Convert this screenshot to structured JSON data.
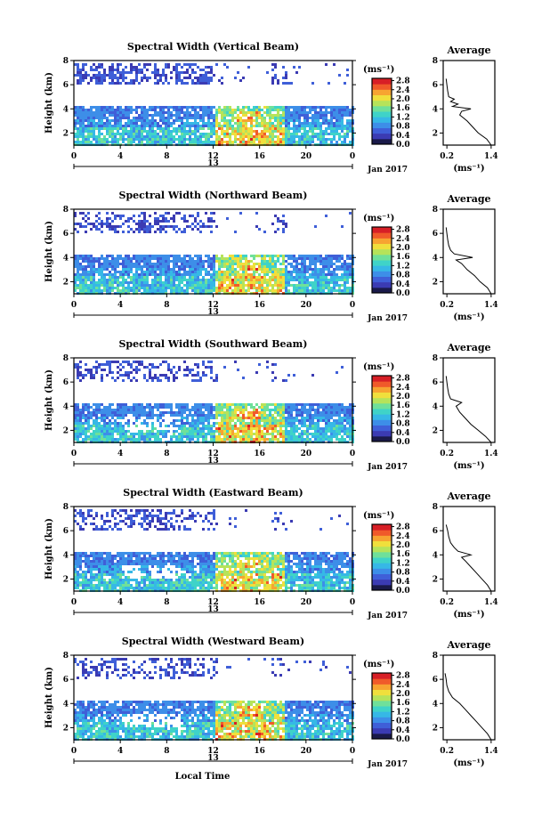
{
  "chart_data": [
    {
      "type": "heatmap",
      "title": "Spectral Width (Vertical Beam)",
      "ylabel": "Height (km)",
      "xticks": [
        "0",
        "4",
        "8",
        "12",
        "16",
        "20",
        "0"
      ],
      "xrange": [
        0,
        24
      ],
      "yticks": [
        "2",
        "4",
        "6",
        "8"
      ],
      "yrange": [
        1,
        8
      ],
      "date_marker": "13",
      "date_label": "Jan 2017",
      "colorbar": {
        "unit": "(ms⁻¹)",
        "ticks": [
          "0.0",
          "0.4",
          "0.8",
          "1.2",
          "1.6",
          "2.0",
          "2.4",
          "2.8"
        ],
        "range": [
          0,
          2.9
        ]
      },
      "profile": {
        "title": "Average",
        "xlabel": "(ms⁻¹)",
        "xticks": [
          "0.2",
          "1.4"
        ],
        "xrange": [
          0.1,
          1.5
        ],
        "yticks": [
          "2",
          "4",
          "6",
          "8"
        ],
        "yrange": [
          1,
          8
        ],
        "heights": [
          1.0,
          1.5,
          2.0,
          2.5,
          3.0,
          3.5,
          3.8,
          4.0,
          4.2,
          4.4,
          4.6,
          4.8,
          5.0,
          5.5,
          6.0,
          6.5
        ],
        "values": [
          1.4,
          1.28,
          1.05,
          0.9,
          0.75,
          0.55,
          0.6,
          0.85,
          0.35,
          0.5,
          0.3,
          0.4,
          0.25,
          0.22,
          0.2,
          0.18
        ]
      }
    },
    {
      "type": "heatmap",
      "title": "Spectral Width (Northward Beam)",
      "ylabel": "Height (km)",
      "xticks": [
        "0",
        "4",
        "8",
        "12",
        "16",
        "20",
        "0"
      ],
      "xrange": [
        0,
        24
      ],
      "yticks": [
        "2",
        "4",
        "6",
        "8"
      ],
      "yrange": [
        1,
        8
      ],
      "date_marker": "13",
      "date_label": "Jan 2017",
      "colorbar": {
        "unit": "(ms⁻¹)",
        "ticks": [
          "0.0",
          "0.4",
          "0.8",
          "1.2",
          "1.6",
          "2.0",
          "2.4",
          "2.8"
        ],
        "range": [
          0,
          2.9
        ]
      },
      "profile": {
        "title": "Average",
        "xlabel": "(ms⁻¹)",
        "xticks": [
          "0.2",
          "1.4"
        ],
        "xrange": [
          0.1,
          1.5
        ],
        "yticks": [
          "2",
          "4",
          "6",
          "8"
        ],
        "yrange": [
          1,
          8
        ],
        "heights": [
          1.0,
          1.5,
          2.0,
          2.5,
          3.0,
          3.5,
          3.8,
          4.0,
          4.3,
          4.6,
          5.0,
          5.5,
          6.0,
          6.5
        ],
        "values": [
          1.4,
          1.3,
          1.1,
          0.95,
          0.75,
          0.6,
          0.45,
          0.9,
          0.4,
          0.3,
          0.25,
          0.22,
          0.2,
          0.18
        ]
      }
    },
    {
      "type": "heatmap",
      "title": "Spectral Width (Southward Beam)",
      "ylabel": "Height (km)",
      "xticks": [
        "0",
        "4",
        "8",
        "12",
        "16",
        "20",
        "0"
      ],
      "xrange": [
        0,
        24
      ],
      "yticks": [
        "2",
        "4",
        "6",
        "8"
      ],
      "yrange": [
        1,
        8
      ],
      "date_marker": "13",
      "date_label": "Jan 2017",
      "colorbar": {
        "unit": "(ms⁻¹)",
        "ticks": [
          "0.0",
          "0.4",
          "0.8",
          "1.2",
          "1.6",
          "2.0",
          "2.4",
          "2.8"
        ],
        "range": [
          0,
          2.9
        ]
      },
      "profile": {
        "title": "Average",
        "xlabel": "(ms⁻¹)",
        "xticks": [
          "0.2",
          "1.4"
        ],
        "xrange": [
          0.1,
          1.5
        ],
        "yticks": [
          "2",
          "4",
          "6",
          "8"
        ],
        "yrange": [
          1,
          8
        ],
        "heights": [
          1.0,
          1.5,
          2.0,
          2.5,
          3.0,
          3.5,
          4.0,
          4.3,
          4.6,
          5.0,
          5.5,
          6.0,
          6.5
        ],
        "values": [
          1.4,
          1.25,
          1.05,
          0.85,
          0.7,
          0.55,
          0.45,
          0.6,
          0.3,
          0.25,
          0.22,
          0.2,
          0.18
        ]
      }
    },
    {
      "type": "heatmap",
      "title": "Spectral Width (Eastward Beam)",
      "ylabel": "Height (km)",
      "xticks": [
        "0",
        "4",
        "8",
        "12",
        "16",
        "20",
        "0"
      ],
      "xrange": [
        0,
        24
      ],
      "yticks": [
        "2",
        "4",
        "6",
        "8"
      ],
      "yrange": [
        1,
        8
      ],
      "date_marker": "13",
      "date_label": "Jan 2017",
      "colorbar": {
        "unit": "(ms⁻¹)",
        "ticks": [
          "0.0",
          "0.4",
          "0.8",
          "1.2",
          "1.6",
          "2.0",
          "2.4",
          "2.8"
        ],
        "range": [
          0,
          2.9
        ]
      },
      "profile": {
        "title": "Average",
        "xlabel": "(ms⁻¹)",
        "xticks": [
          "0.2",
          "1.4"
        ],
        "xrange": [
          0.1,
          1.5
        ],
        "yticks": [
          "2",
          "4",
          "6",
          "8"
        ],
        "yrange": [
          1,
          8
        ],
        "heights": [
          1.0,
          1.5,
          2.0,
          2.5,
          3.0,
          3.5,
          3.8,
          4.0,
          4.3,
          4.6,
          5.0,
          5.5,
          6.0,
          6.5
        ],
        "values": [
          1.4,
          1.3,
          1.15,
          1.0,
          0.85,
          0.7,
          0.6,
          0.85,
          0.5,
          0.4,
          0.3,
          0.25,
          0.22,
          0.18
        ]
      }
    },
    {
      "type": "heatmap",
      "title": "Spectral Width (Westward Beam)",
      "ylabel": "Height (km)",
      "xlabel": "Local Time",
      "xticks": [
        "0",
        "4",
        "8",
        "12",
        "16",
        "20",
        "0"
      ],
      "xrange": [
        0,
        24
      ],
      "yticks": [
        "2",
        "4",
        "6",
        "8"
      ],
      "yrange": [
        1,
        8
      ],
      "date_marker": "13",
      "date_label": "Jan 2017",
      "colorbar": {
        "unit": "(ms⁻¹)",
        "ticks": [
          "0.0",
          "0.4",
          "0.8",
          "1.2",
          "1.6",
          "2.0",
          "2.4",
          "2.8"
        ],
        "range": [
          0,
          2.9
        ]
      },
      "profile": {
        "title": "Average",
        "xlabel": "(ms⁻¹)",
        "xticks": [
          "0.2",
          "1.4"
        ],
        "xrange": [
          0.1,
          1.5
        ],
        "yticks": [
          "2",
          "4",
          "6",
          "8"
        ],
        "yrange": [
          1,
          8
        ],
        "heights": [
          1.0,
          1.5,
          2.0,
          2.5,
          3.0,
          3.5,
          4.0,
          4.5,
          5.0,
          5.5,
          6.0,
          6.5
        ],
        "values": [
          1.4,
          1.3,
          1.15,
          1.0,
          0.85,
          0.7,
          0.55,
          0.35,
          0.25,
          0.2,
          0.18,
          0.15
        ]
      }
    }
  ],
  "colors": {
    "scale": [
      "#1a1a4a",
      "#3b3bb3",
      "#3f5fd8",
      "#3d8ee8",
      "#36b8e6",
      "#3fd3c8",
      "#6fe09a",
      "#b6e35a",
      "#f0df3c",
      "#f7a431",
      "#f05a2a",
      "#d71f26"
    ]
  }
}
